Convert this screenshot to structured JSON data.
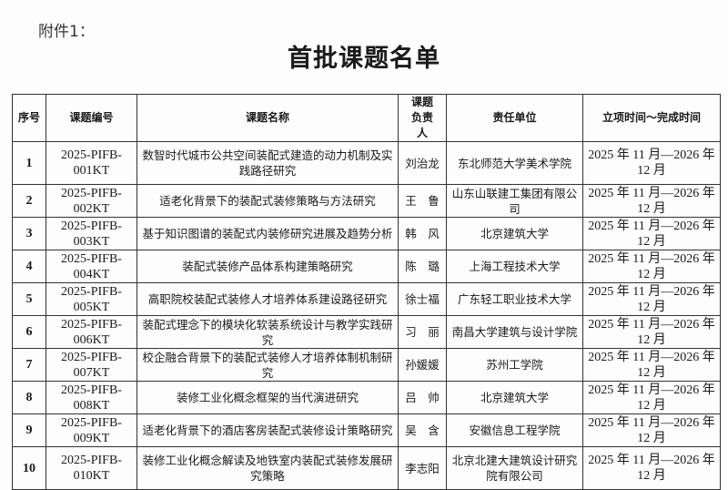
{
  "attachment_label": "附件1：",
  "title": "首批课题名单",
  "table": {
    "headers": [
      "序号",
      "课题编号",
      "课题名称",
      "课题负责人",
      "责任单位",
      "立项时间～完成时间"
    ],
    "rows": [
      [
        "1",
        "2025-PIFB-001KT",
        "数智时代城市公共空间装配式建造的动力机制及实践路径研究",
        "刘治龙",
        "东北师范大学美术学院",
        "2025 年 11 月—2026 年 12 月"
      ],
      [
        "2",
        "2025-PIFB-002KT",
        "适老化背景下的装配式装修策略与方法研究",
        "王　鲁",
        "山东山联建工集团有限公司",
        "2025 年 11 月—2026 年 12 月"
      ],
      [
        "3",
        "2025-PIFB-003KT",
        "基于知识图谱的装配式内装修研究进展及趋势分析",
        "韩　风",
        "北京建筑大学",
        "2025 年 11 月—2026 年 12 月"
      ],
      [
        "4",
        "2025-PIFB-004KT",
        "装配式装修产品体系构建策略研究",
        "陈　璐",
        "上海工程技术大学",
        "2025 年 11 月—2026 年 12 月"
      ],
      [
        "5",
        "2025-PIFB-005KT",
        "高职院校装配式装修人才培养体系建设路径研究",
        "徐士福",
        "广东轻工职业技术大学",
        "2025 年 11 月—2026 年 12 月"
      ],
      [
        "6",
        "2025-PIFB-006KT",
        "装配式理念下的模块化软装系统设计与教学实践研究",
        "习　丽",
        "南昌大学建筑与设计学院",
        "2025 年 11 月—2026 年 12 月"
      ],
      [
        "7",
        "2025-PIFB-007KT",
        "校企融合背景下的装配式装修人才培养体制机制研究",
        "孙媛媛",
        "苏州工学院",
        "2025 年 11 月—2026 年 12 月"
      ],
      [
        "8",
        "2025-PIFB-008KT",
        "装修工业化概念框架的当代演进研究",
        "吕　帅",
        "北京建筑大学",
        "2025 年 11 月—2026 年 12 月"
      ],
      [
        "9",
        "2025-PIFB-009KT",
        "适老化背景下的酒店客房装配式装修设计策略研究",
        "吴　含",
        "安徽信息工程学院",
        "2025 年 11 月—2026 年 12 月"
      ],
      [
        "10",
        "2025-PIFB-010KT",
        "装修工业化概念解读及地铁室内装配式装修发展研究策略",
        "李志阳",
        "北京北建大建筑设计研究院有限公司",
        "2025 年 11 月—2026 年 12 月"
      ]
    ]
  }
}
